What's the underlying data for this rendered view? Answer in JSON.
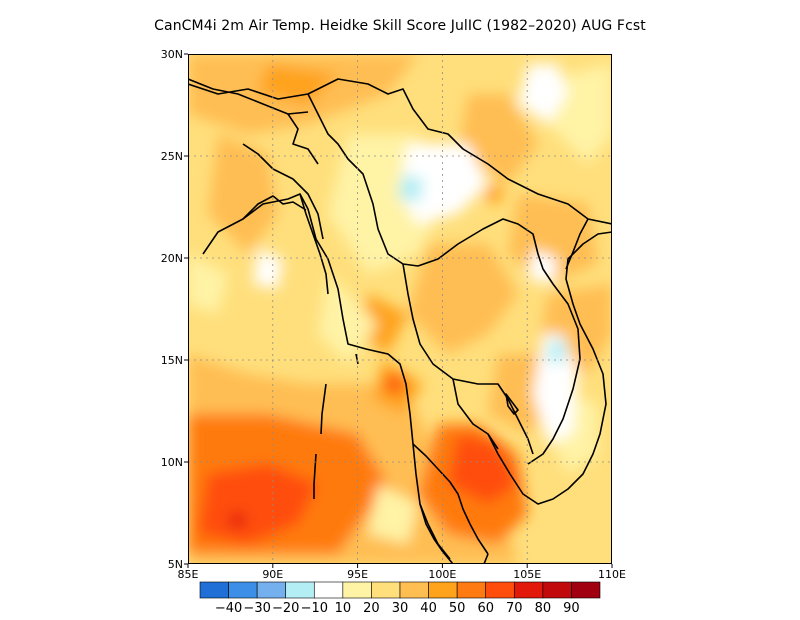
{
  "title": "CanCM4i  2m Air Temp. Heidke Skill Score JulIC (1982–2020) AUG Fcst",
  "map": {
    "lon_range": [
      85,
      110
    ],
    "lat_range": [
      5,
      30
    ],
    "x_ticks": [
      "85E",
      "90E",
      "95E",
      "100E",
      "105E",
      "110E"
    ],
    "y_ticks": [
      "5N",
      "10N",
      "15N",
      "20N",
      "25N",
      "30N"
    ],
    "grid": "dotted"
  },
  "colorbar": {
    "labels": [
      "−40",
      "−30",
      "−20",
      "−10",
      "10",
      "20",
      "30",
      "40",
      "50",
      "60",
      "70",
      "80",
      "90"
    ],
    "colors": [
      "#1f6fd6",
      "#3d8ee6",
      "#74b0ee",
      "#b4eef5",
      "#ffffff",
      "#fff3a6",
      "#ffdf7c",
      "#ffbe52",
      "#ffa21c",
      "#ff7a10",
      "#ff4d0c",
      "#e2180a",
      "#c1080b",
      "#a10010"
    ]
  },
  "chart_data": {
    "type": "heatmap",
    "title": "CanCM4i  2m Air Temp. Heidke Skill Score JulIC (1982–2020) AUG Fcst",
    "x_range": [
      85,
      110
    ],
    "y_range": [
      5,
      30
    ],
    "x_unit": "degrees E",
    "y_unit": "degrees N",
    "levels": [
      -40,
      -30,
      -20,
      -10,
      10,
      20,
      30,
      40,
      50,
      60,
      70,
      80,
      90
    ]
  }
}
